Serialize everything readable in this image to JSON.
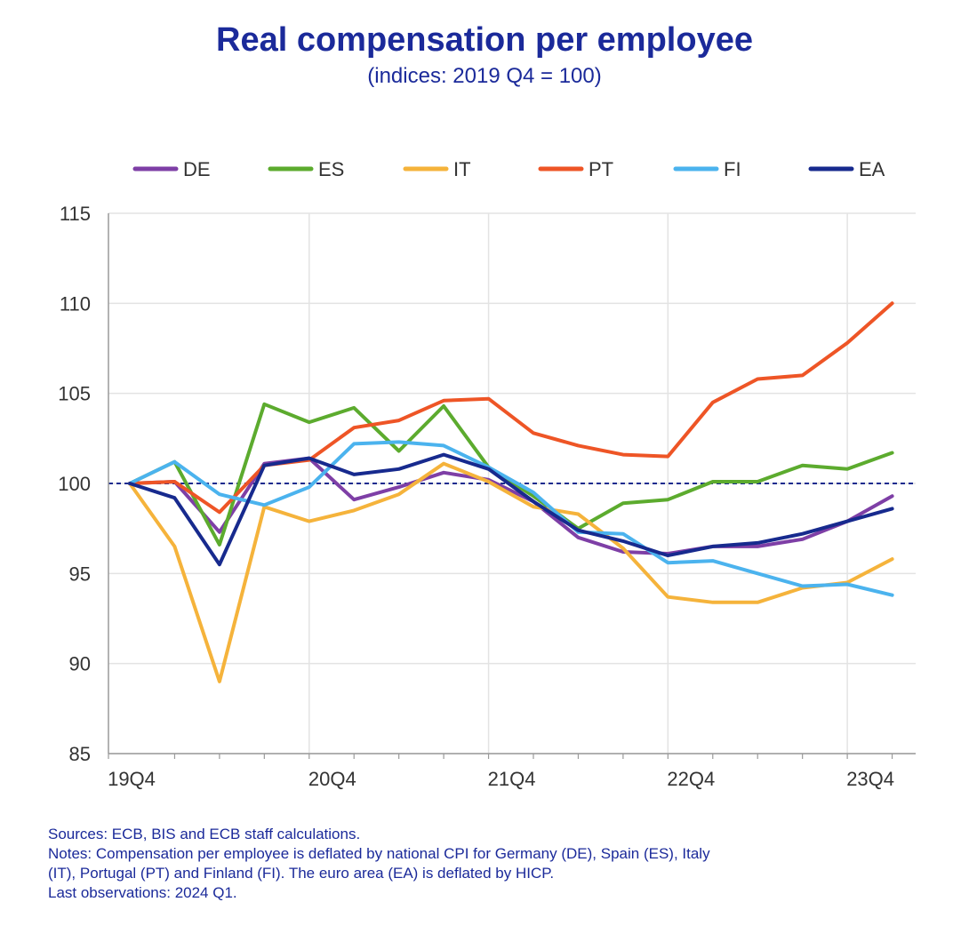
{
  "title": "Real compensation per employee",
  "subtitle": "(indices: 2019 Q4 = 100)",
  "colors": {
    "DE": "#7e3fa6",
    "ES": "#5cab2e",
    "IT": "#f5b33b",
    "PT": "#ee5526",
    "FI": "#4bb3ee",
    "EA": "#172a8e",
    "reference": "#172a8e",
    "text": "#1b2a9a"
  },
  "footnotes": {
    "sources": "Sources: ECB, BIS and ECB staff calculations.",
    "notes_line1": "Notes: Compensation per employee is deflated by national CPI for Germany (DE), Spain (ES), Italy",
    "notes_line2": "(IT), Portugal (PT) and Finland (FI). The euro area (EA) is deflated by HICP.",
    "last_obs": "Last observations: 2024 Q1."
  },
  "chart_data": {
    "type": "line",
    "title": "Real compensation per employee",
    "subtitle": "(indices: 2019 Q4 = 100)",
    "xlabel": "",
    "ylabel": "",
    "x": [
      "19Q4",
      "20Q1",
      "20Q2",
      "20Q3",
      "20Q4",
      "21Q1",
      "21Q2",
      "21Q3",
      "21Q4",
      "22Q1",
      "22Q2",
      "22Q3",
      "22Q4",
      "23Q1",
      "23Q2",
      "23Q3",
      "23Q4",
      "24Q1"
    ],
    "x_tick_labels": [
      "19Q4",
      "20Q4",
      "21Q4",
      "22Q4",
      "23Q4"
    ],
    "ylim": [
      85,
      115
    ],
    "y_ticks": [
      85,
      90,
      95,
      100,
      105,
      110,
      115
    ],
    "grid": true,
    "legend_position": "top",
    "reference_line": 100,
    "series": [
      {
        "name": "DE",
        "values": [
          100,
          100.1,
          97.3,
          101.1,
          101.4,
          99.1,
          99.8,
          100.6,
          100.2,
          99.0,
          97.0,
          96.2,
          96.1,
          96.5,
          96.5,
          96.9,
          97.9,
          99.3
        ]
      },
      {
        "name": "ES",
        "values": [
          100,
          101.2,
          96.6,
          104.4,
          103.4,
          104.2,
          101.8,
          104.3,
          100.9,
          99.3,
          97.5,
          98.9,
          99.1,
          100.1,
          100.1,
          101.0,
          100.8,
          101.7
        ]
      },
      {
        "name": "IT",
        "values": [
          100,
          96.5,
          89.0,
          98.7,
          97.9,
          98.5,
          99.4,
          101.1,
          100.1,
          98.7,
          98.3,
          96.4,
          93.7,
          93.4,
          93.4,
          94.2,
          94.5,
          95.8
        ]
      },
      {
        "name": "PT",
        "values": [
          100,
          100.1,
          98.4,
          101.0,
          101.3,
          103.1,
          103.5,
          104.6,
          104.7,
          102.8,
          102.1,
          101.6,
          101.5,
          104.5,
          105.8,
          106.0,
          107.8,
          110.0
        ]
      },
      {
        "name": "FI",
        "values": [
          100,
          101.2,
          99.4,
          98.8,
          99.8,
          102.2,
          102.3,
          102.1,
          100.9,
          99.5,
          97.3,
          97.2,
          95.6,
          95.7,
          95.0,
          94.3,
          94.4,
          93.8
        ]
      },
      {
        "name": "EA",
        "values": [
          100,
          99.2,
          95.5,
          101.0,
          101.4,
          100.5,
          100.8,
          101.6,
          100.8,
          99.0,
          97.4,
          96.8,
          96.0,
          96.5,
          96.7,
          97.2,
          97.9,
          98.6
        ]
      }
    ]
  }
}
